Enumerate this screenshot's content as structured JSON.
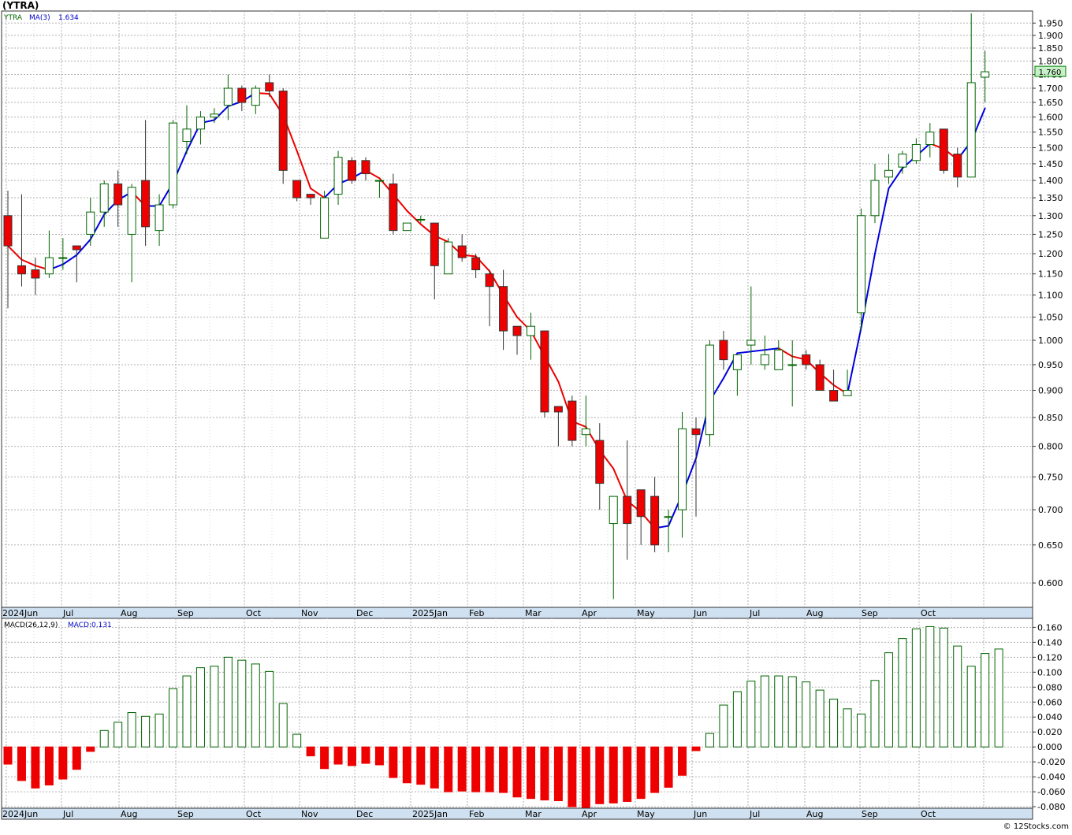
{
  "title": "(YTRA)",
  "legend": {
    "ticker": "YTRA",
    "ma_label": "MA(3)",
    "ma_value": "1.634",
    "macd_label": "MACD(26,12,9)",
    "macd_value_label": "MACD:0.131"
  },
  "last_price_label": "1.760",
  "watermark": "© 12Stocks.com",
  "month_labels": [
    "2024Jun",
    "Jul",
    "Aug",
    "Sep",
    "Oct",
    "Nov",
    "Dec",
    "2025Jan",
    "Feb",
    "Mar",
    "Apr",
    "May",
    "Jun",
    "Jul",
    "Aug",
    "Sep",
    "Oct"
  ],
  "colors": {
    "up_candle": "#006400",
    "down_candle": "#ee0000",
    "ma_up": "#0000dd",
    "ma_down": "#ee0000",
    "axis_band": "#cfe0f0",
    "grid": "#b0b0b0"
  },
  "chart_data": [
    {
      "type": "candlestick",
      "interval": "weekly",
      "scale": "log",
      "ylim": [
        0.57,
        2.0
      ],
      "y_ticks": [
        0.6,
        0.65,
        0.7,
        0.75,
        0.8,
        0.85,
        0.9,
        0.95,
        1.0,
        1.05,
        1.1,
        1.15,
        1.2,
        1.25,
        1.3,
        1.35,
        1.4,
        1.45,
        1.5,
        1.55,
        1.6,
        1.65,
        1.7,
        1.75,
        1.8,
        1.85,
        1.9,
        1.95
      ],
      "ma_period": 3,
      "candles": [
        {
          "o": 1.3,
          "h": 1.37,
          "l": 1.07,
          "c": 1.22
        },
        {
          "o": 1.17,
          "h": 1.36,
          "l": 1.12,
          "c": 1.15
        },
        {
          "o": 1.16,
          "h": 1.19,
          "l": 1.1,
          "c": 1.14
        },
        {
          "o": 1.15,
          "h": 1.26,
          "l": 1.14,
          "c": 1.19
        },
        {
          "o": 1.19,
          "h": 1.24,
          "l": 1.16,
          "c": 1.19
        },
        {
          "o": 1.22,
          "h": 1.22,
          "l": 1.13,
          "c": 1.21
        },
        {
          "o": 1.25,
          "h": 1.35,
          "l": 1.22,
          "c": 1.31
        },
        {
          "o": 1.31,
          "h": 1.4,
          "l": 1.27,
          "c": 1.39
        },
        {
          "o": 1.39,
          "h": 1.43,
          "l": 1.27,
          "c": 1.33
        },
        {
          "o": 1.25,
          "h": 1.39,
          "l": 1.13,
          "c": 1.38
        },
        {
          "o": 1.4,
          "h": 1.59,
          "l": 1.22,
          "c": 1.27
        },
        {
          "o": 1.26,
          "h": 1.36,
          "l": 1.22,
          "c": 1.33
        },
        {
          "o": 1.33,
          "h": 1.59,
          "l": 1.32,
          "c": 1.58
        },
        {
          "o": 1.52,
          "h": 1.64,
          "l": 1.48,
          "c": 1.56
        },
        {
          "o": 1.56,
          "h": 1.62,
          "l": 1.51,
          "c": 1.6
        },
        {
          "o": 1.6,
          "h": 1.63,
          "l": 1.58,
          "c": 1.61
        },
        {
          "o": 1.64,
          "h": 1.75,
          "l": 1.59,
          "c": 1.7
        },
        {
          "o": 1.7,
          "h": 1.71,
          "l": 1.62,
          "c": 1.65
        },
        {
          "o": 1.64,
          "h": 1.71,
          "l": 1.61,
          "c": 1.7
        },
        {
          "o": 1.72,
          "h": 1.75,
          "l": 1.67,
          "c": 1.69
        },
        {
          "o": 1.69,
          "h": 1.7,
          "l": 1.39,
          "c": 1.43
        },
        {
          "o": 1.4,
          "h": 1.4,
          "l": 1.34,
          "c": 1.35
        },
        {
          "o": 1.36,
          "h": 1.36,
          "l": 1.33,
          "c": 1.35
        },
        {
          "o": 1.24,
          "h": 1.37,
          "l": 1.24,
          "c": 1.35
        },
        {
          "o": 1.36,
          "h": 1.49,
          "l": 1.33,
          "c": 1.47
        },
        {
          "o": 1.46,
          "h": 1.47,
          "l": 1.39,
          "c": 1.4
        },
        {
          "o": 1.46,
          "h": 1.47,
          "l": 1.4,
          "c": 1.42
        },
        {
          "o": 1.4,
          "h": 1.4,
          "l": 1.35,
          "c": 1.4
        },
        {
          "o": 1.39,
          "h": 1.42,
          "l": 1.25,
          "c": 1.26
        },
        {
          "o": 1.26,
          "h": 1.28,
          "l": 1.26,
          "c": 1.28
        },
        {
          "o": 1.29,
          "h": 1.3,
          "l": 1.28,
          "c": 1.29
        },
        {
          "o": 1.28,
          "h": 1.28,
          "l": 1.09,
          "c": 1.17
        },
        {
          "o": 1.15,
          "h": 1.24,
          "l": 1.15,
          "c": 1.23
        },
        {
          "o": 1.22,
          "h": 1.25,
          "l": 1.18,
          "c": 1.19
        },
        {
          "o": 1.19,
          "h": 1.2,
          "l": 1.14,
          "c": 1.16
        },
        {
          "o": 1.15,
          "h": 1.16,
          "l": 1.03,
          "c": 1.12
        },
        {
          "o": 1.12,
          "h": 1.16,
          "l": 0.98,
          "c": 1.02
        },
        {
          "o": 1.03,
          "h": 1.03,
          "l": 0.97,
          "c": 1.01
        },
        {
          "o": 1.01,
          "h": 1.06,
          "l": 0.96,
          "c": 1.03
        },
        {
          "o": 1.02,
          "h": 1.02,
          "l": 0.85,
          "c": 0.86
        },
        {
          "o": 0.87,
          "h": 0.87,
          "l": 0.8,
          "c": 0.86
        },
        {
          "o": 0.88,
          "h": 0.89,
          "l": 0.8,
          "c": 0.81
        },
        {
          "o": 0.82,
          "h": 0.89,
          "l": 0.8,
          "c": 0.83
        },
        {
          "o": 0.81,
          "h": 0.84,
          "l": 0.7,
          "c": 0.74
        },
        {
          "o": 0.68,
          "h": 0.72,
          "l": 0.58,
          "c": 0.72
        },
        {
          "o": 0.72,
          "h": 0.81,
          "l": 0.63,
          "c": 0.68
        },
        {
          "o": 0.73,
          "h": 0.73,
          "l": 0.65,
          "c": 0.69
        },
        {
          "o": 0.72,
          "h": 0.75,
          "l": 0.64,
          "c": 0.65
        },
        {
          "o": 0.69,
          "h": 0.7,
          "l": 0.64,
          "c": 0.69
        },
        {
          "o": 0.7,
          "h": 0.86,
          "l": 0.66,
          "c": 0.83
        },
        {
          "o": 0.83,
          "h": 0.85,
          "l": 0.69,
          "c": 0.82
        },
        {
          "o": 0.82,
          "h": 1.0,
          "l": 0.8,
          "c": 0.99
        },
        {
          "o": 1.0,
          "h": 1.02,
          "l": 0.94,
          "c": 0.96
        },
        {
          "o": 0.94,
          "h": 0.97,
          "l": 0.89,
          "c": 0.97
        },
        {
          "o": 0.99,
          "h": 1.12,
          "l": 0.95,
          "c": 1.0
        },
        {
          "o": 0.95,
          "h": 1.01,
          "l": 0.94,
          "c": 0.97
        },
        {
          "o": 0.94,
          "h": 1.0,
          "l": 0.94,
          "c": 0.98
        },
        {
          "o": 0.95,
          "h": 1.0,
          "l": 0.87,
          "c": 0.95
        },
        {
          "o": 0.97,
          "h": 0.98,
          "l": 0.94,
          "c": 0.95
        },
        {
          "o": 0.95,
          "h": 0.96,
          "l": 0.9,
          "c": 0.9
        },
        {
          "o": 0.9,
          "h": 0.94,
          "l": 0.88,
          "c": 0.88
        },
        {
          "o": 0.89,
          "h": 0.94,
          "l": 0.89,
          "c": 0.9
        },
        {
          "o": 1.06,
          "h": 1.32,
          "l": 1.02,
          "c": 1.3
        },
        {
          "o": 1.3,
          "h": 1.45,
          "l": 1.28,
          "c": 1.4
        },
        {
          "o": 1.41,
          "h": 1.48,
          "l": 1.39,
          "c": 1.43
        },
        {
          "o": 1.44,
          "h": 1.49,
          "l": 1.42,
          "c": 1.48
        },
        {
          "o": 1.46,
          "h": 1.53,
          "l": 1.45,
          "c": 1.51
        },
        {
          "o": 1.51,
          "h": 1.58,
          "l": 1.47,
          "c": 1.55
        },
        {
          "o": 1.56,
          "h": 1.56,
          "l": 1.42,
          "c": 1.43
        },
        {
          "o": 1.48,
          "h": 1.5,
          "l": 1.38,
          "c": 1.41
        },
        {
          "o": 1.41,
          "h": 1.99,
          "l": 1.41,
          "c": 1.72
        },
        {
          "o": 1.74,
          "h": 1.84,
          "l": 1.65,
          "c": 1.76
        }
      ]
    },
    {
      "type": "bar",
      "name": "MACD(26,12,9)",
      "ylim": [
        -0.082,
        0.172
      ],
      "y_ticks": [
        -0.08,
        -0.06,
        -0.04,
        -0.02,
        0.0,
        0.02,
        0.04,
        0.06,
        0.08,
        0.1,
        0.12,
        0.14,
        0.16
      ],
      "values": [
        -0.023,
        -0.045,
        -0.055,
        -0.051,
        -0.043,
        -0.03,
        -0.006,
        0.022,
        0.033,
        0.046,
        0.041,
        0.044,
        0.078,
        0.095,
        0.106,
        0.108,
        0.12,
        0.116,
        0.111,
        0.101,
        0.058,
        0.017,
        -0.012,
        -0.029,
        -0.023,
        -0.025,
        -0.022,
        -0.024,
        -0.041,
        -0.048,
        -0.05,
        -0.055,
        -0.06,
        -0.059,
        -0.06,
        -0.06,
        -0.061,
        -0.067,
        -0.069,
        -0.071,
        -0.072,
        -0.08,
        -0.082,
        -0.076,
        -0.075,
        -0.073,
        -0.069,
        -0.061,
        -0.054,
        -0.038,
        -0.005,
        0.018,
        0.056,
        0.074,
        0.088,
        0.095,
        0.095,
        0.094,
        0.087,
        0.076,
        0.064,
        0.051,
        0.044,
        0.089,
        0.126,
        0.145,
        0.158,
        0.161,
        0.159,
        0.135,
        0.108,
        0.125,
        0.131
      ]
    }
  ]
}
